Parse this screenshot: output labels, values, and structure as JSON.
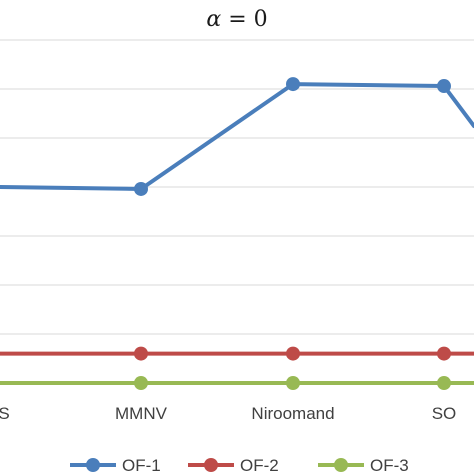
{
  "chart_data": {
    "type": "line",
    "title_symbol": "α",
    "title_rest": " = 0",
    "categories": [
      "S",
      "MMNV",
      "Niroomand",
      "SO"
    ],
    "ylim": [
      0,
      3.5
    ],
    "grid": true,
    "legend_placement": "bottom",
    "series": [
      {
        "name": "OF-1",
        "color": "#4a7ebb",
        "values": [
          2.0,
          1.98,
          3.05,
          3.03
        ]
      },
      {
        "name": "OF-2",
        "color": "#be4b48",
        "values": [
          0.3,
          0.3,
          0.3,
          0.3
        ]
      },
      {
        "name": "OF-3",
        "color": "#98b954",
        "values": [
          0.0,
          0.0,
          0.0,
          0.0
        ]
      }
    ]
  }
}
